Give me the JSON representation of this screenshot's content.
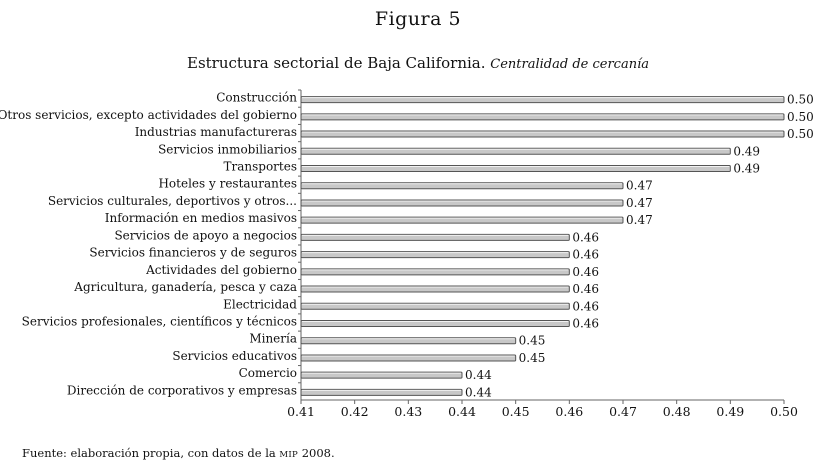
{
  "figure_label": "Figura 5",
  "chart_data": {
    "type": "bar",
    "orientation": "horizontal",
    "title": "Estructura sectorial de Baja California.",
    "subtitle": "Centralidad de cercanía",
    "categories": [
      "Construcción",
      "Otros servicios, excepto actividades del gobierno",
      "Industrias manufactureras",
      "Servicios inmobiliarios",
      "Transportes",
      "Hoteles y restaurantes",
      "Servicios culturales, deportivos y otros...",
      "Información en medios masivos",
      "Servicios de apoyo a negocios",
      "Servicios financieros y de seguros",
      "Actividades del gobierno",
      "Agricultura, ganadería, pesca y caza",
      "Electricidad",
      "Servicios profesionales, científicos y técnicos",
      "Minería",
      "Servicios educativos",
      "Comercio",
      "Dirección de corporativos y empresas"
    ],
    "values": [
      0.5,
      0.5,
      0.5,
      0.49,
      0.49,
      0.47,
      0.47,
      0.47,
      0.46,
      0.46,
      0.46,
      0.46,
      0.46,
      0.46,
      0.45,
      0.45,
      0.44,
      0.44
    ],
    "value_labels": [
      "0.50",
      "0.50",
      "0.50",
      "0.49",
      "0.49",
      "0.47",
      "0.47",
      "0.47",
      "0.46",
      "0.46",
      "0.46",
      "0.46",
      "0.46",
      "0.46",
      "0.45",
      "0.45",
      "0.44",
      "0.44"
    ],
    "xlim": [
      0.41,
      0.5
    ],
    "xticks": [
      "0.41",
      "0.42",
      "0.43",
      "0.44",
      "0.45",
      "0.46",
      "0.47",
      "0.48",
      "0.49",
      "0.50"
    ],
    "xlabel": "",
    "ylabel": "",
    "grid": false,
    "bar_color": "#c8c8c8",
    "bar_edge": "#555555"
  },
  "source_prefix": "Fuente: elaboración propia, con datos de la ",
  "source_abbrev": "MIP",
  "source_suffix": " 2008."
}
